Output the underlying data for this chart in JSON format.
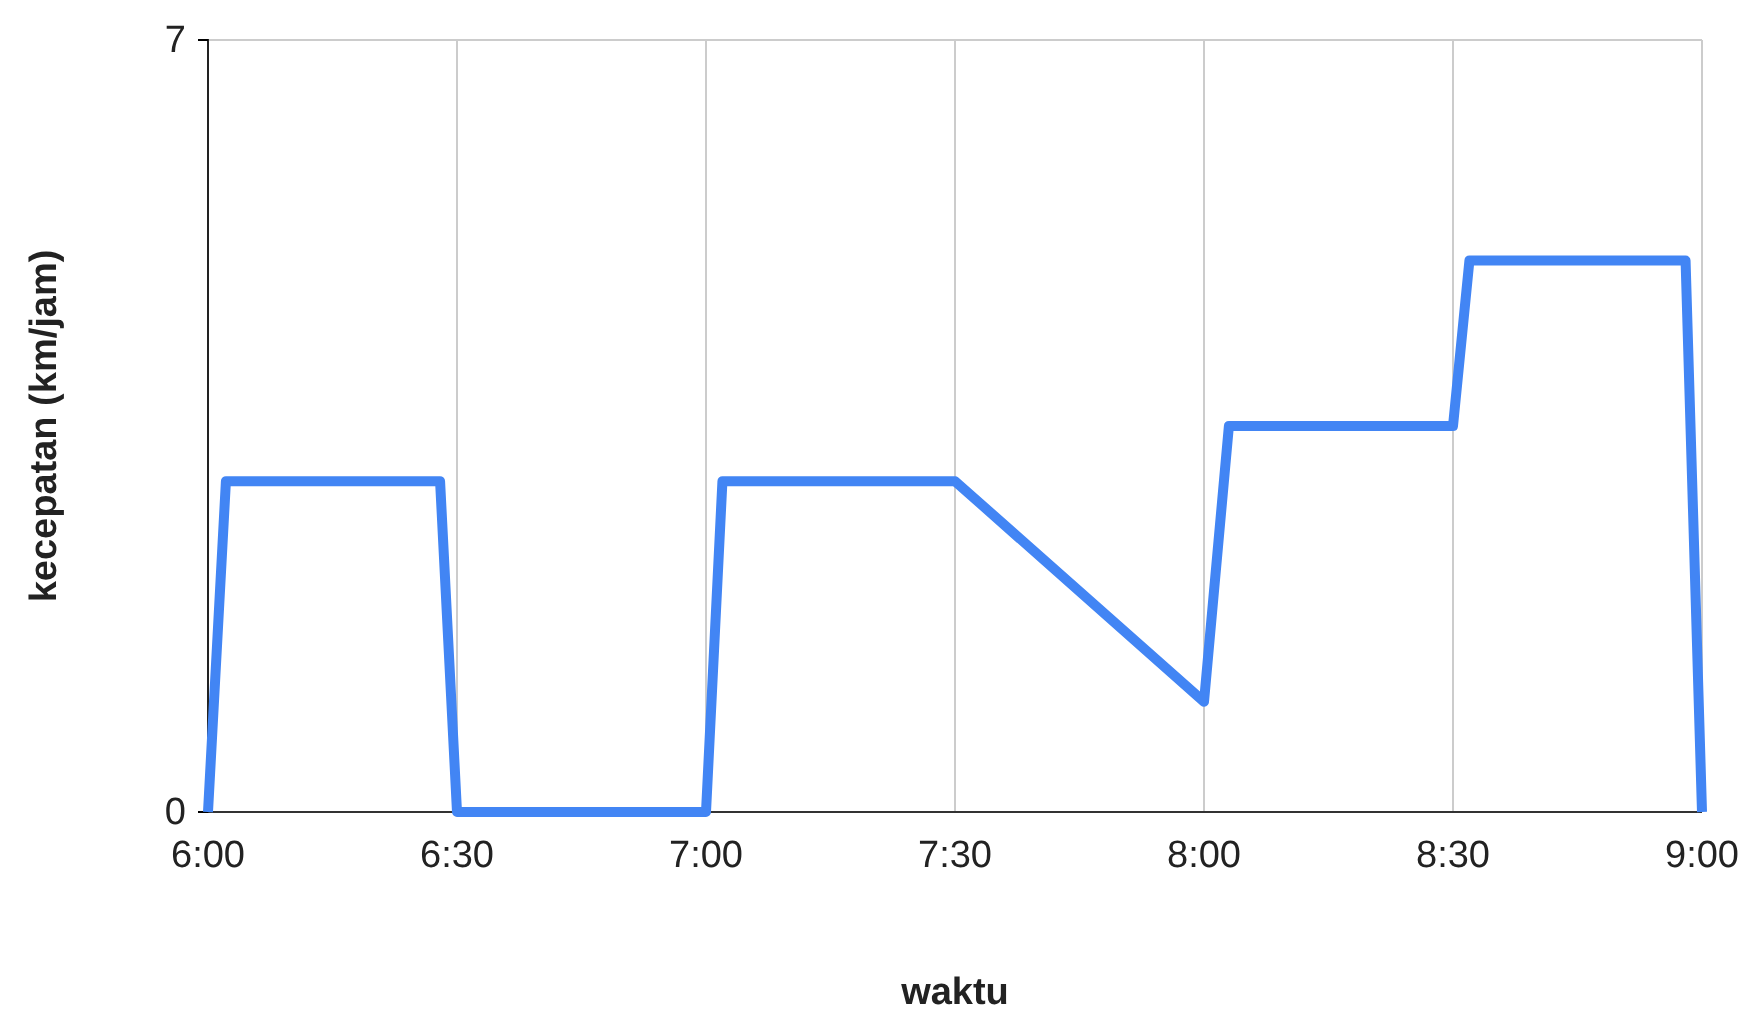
{
  "chart_data": {
    "type": "line",
    "xlabel": "waktu",
    "ylabel": "kecepatan (km/jam)",
    "xlim": [
      6,
      9
    ],
    "xticks": [
      {
        "value": 6,
        "label": "6:00"
      },
      {
        "value": 6.5,
        "label": "6:30"
      },
      {
        "value": 7,
        "label": "7:00"
      },
      {
        "value": 7.5,
        "label": "7:30"
      },
      {
        "value": 8,
        "label": "8:00"
      },
      {
        "value": 8.5,
        "label": "8:30"
      },
      {
        "value": 9,
        "label": "9:00"
      }
    ],
    "ylim": [
      0,
      7
    ],
    "yticks": [
      0,
      7
    ],
    "grid": true,
    "marker": "none",
    "line_style": "solid",
    "series": [
      {
        "color": "#4285f4",
        "x": [
          6,
          6.036,
          6.466,
          6.5,
          7,
          7.033,
          7.5,
          8,
          8.05,
          8.5,
          8.533,
          8.967,
          9
        ],
        "values": [
          0,
          3,
          3,
          0,
          0,
          3,
          3,
          1,
          3.5,
          3.5,
          5,
          5,
          0
        ]
      }
    ]
  }
}
